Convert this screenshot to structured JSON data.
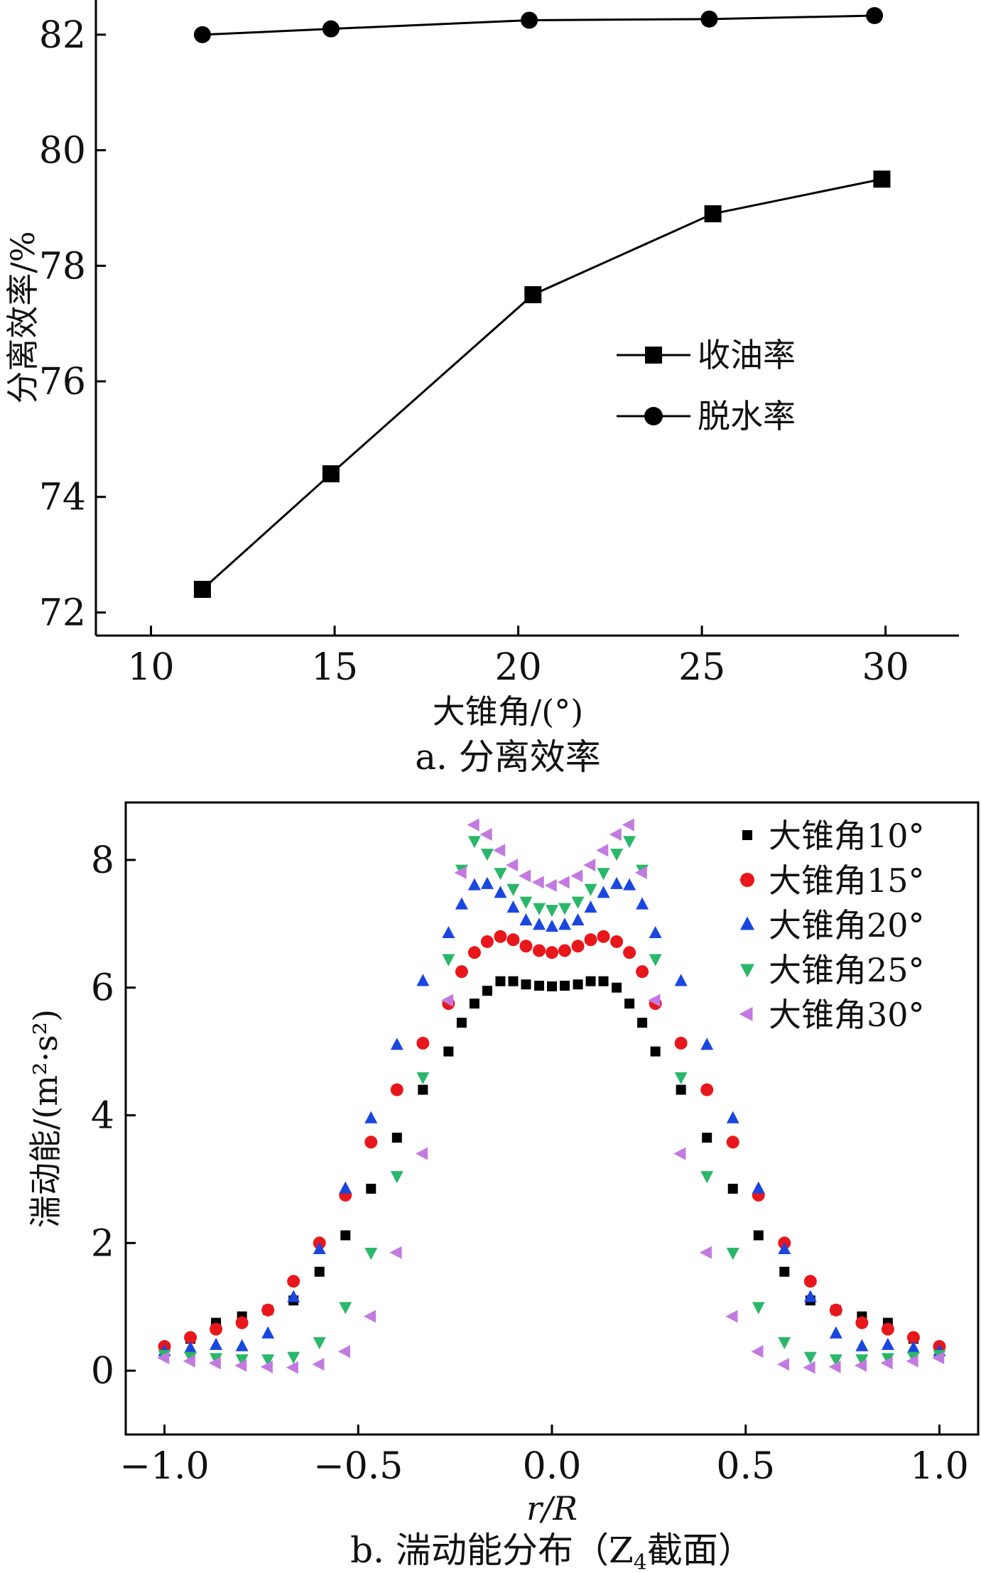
{
  "chart_data": [
    {
      "type": "line",
      "caption": "a. 分离效率",
      "xlabel": "大锥角/(°)",
      "ylabel": "分离效率/%",
      "xlim": [
        8.5,
        32
      ],
      "ylim": [
        71.6,
        82.6
      ],
      "xticks": [
        "10",
        "15",
        "20",
        "25",
        "30"
      ],
      "yticks": [
        "72",
        "74",
        "76",
        "78",
        "80",
        "82"
      ],
      "legend_position": "center-right",
      "series": [
        {
          "name": "收油率",
          "marker": "square",
          "x": [
            11.4,
            14.9,
            20.4,
            25.3,
            29.9
          ],
          "y": [
            72.4,
            74.4,
            77.5,
            78.9,
            79.5
          ]
        },
        {
          "name": "脱水率",
          "marker": "circle",
          "x": [
            11.4,
            14.9,
            20.3,
            25.2,
            29.7
          ],
          "y": [
            82.0,
            82.1,
            82.25,
            82.27,
            82.33
          ]
        }
      ]
    },
    {
      "type": "scatter",
      "caption_prefix": "b. 湍动能分布（Z",
      "caption_subscript": "4",
      "caption_suffix": "截面）",
      "xlabel": "r/R",
      "ylabel": "湍动能/(m²·s²)",
      "xlim": [
        -1.1,
        1.1
      ],
      "ylim": [
        -1.0,
        8.9
      ],
      "xticks": [
        "−1.0",
        "−0.5",
        "0.0",
        "0.5",
        "1.0"
      ],
      "yticks": [
        "0",
        "2",
        "4",
        "6",
        "8"
      ],
      "legend_position": "top-right",
      "series": [
        {
          "name": "大锥角10°",
          "color": "#000000",
          "marker": "square",
          "x": [
            -1.0,
            -0.933,
            -0.867,
            -0.8,
            -0.733,
            -0.667,
            -0.6,
            -0.533,
            -0.467,
            -0.4,
            -0.333,
            -0.267,
            -0.233,
            -0.2,
            -0.167,
            -0.133,
            -0.1,
            -0.067,
            -0.033,
            0.0,
            0.033,
            0.067,
            0.1,
            0.133,
            0.167,
            0.2,
            0.233,
            0.267,
            0.333,
            0.4,
            0.467,
            0.533,
            0.6,
            0.667,
            0.733,
            0.8,
            0.867,
            0.933,
            1.0
          ],
          "y": [
            0.35,
            0.5,
            0.75,
            0.85,
            0.95,
            1.1,
            1.55,
            2.12,
            2.85,
            3.65,
            4.4,
            5.0,
            5.45,
            5.75,
            5.95,
            6.1,
            6.1,
            6.05,
            6.03,
            6.02,
            6.03,
            6.05,
            6.1,
            6.1,
            6.0,
            5.75,
            5.45,
            5.0,
            4.4,
            3.65,
            2.85,
            2.12,
            1.55,
            1.1,
            0.95,
            0.85,
            0.75,
            0.5,
            0.35
          ]
        },
        {
          "name": "大锥角15°",
          "color": "#e8171b",
          "marker": "circle",
          "x": [
            -1.0,
            -0.933,
            -0.867,
            -0.8,
            -0.733,
            -0.667,
            -0.6,
            -0.533,
            -0.467,
            -0.4,
            -0.333,
            -0.267,
            -0.233,
            -0.2,
            -0.167,
            -0.133,
            -0.1,
            -0.067,
            -0.033,
            0.0,
            0.033,
            0.067,
            0.1,
            0.133,
            0.167,
            0.2,
            0.233,
            0.267,
            0.333,
            0.4,
            0.467,
            0.533,
            0.6,
            0.667,
            0.733,
            0.8,
            0.867,
            0.933,
            1.0
          ],
          "y": [
            0.38,
            0.52,
            0.65,
            0.75,
            0.95,
            1.4,
            2.0,
            2.75,
            3.58,
            4.4,
            5.13,
            5.75,
            6.25,
            6.55,
            6.72,
            6.8,
            6.75,
            6.65,
            6.58,
            6.55,
            6.58,
            6.65,
            6.75,
            6.8,
            6.72,
            6.55,
            6.25,
            5.75,
            5.13,
            4.4,
            3.58,
            2.75,
            2.0,
            1.4,
            0.95,
            0.75,
            0.65,
            0.52,
            0.38
          ]
        },
        {
          "name": "大锥角20°",
          "color": "#1a46e0",
          "marker": "triangle-up",
          "x": [
            -1.0,
            -0.933,
            -0.867,
            -0.8,
            -0.733,
            -0.667,
            -0.6,
            -0.533,
            -0.467,
            -0.4,
            -0.333,
            -0.267,
            -0.233,
            -0.2,
            -0.167,
            -0.133,
            -0.1,
            -0.067,
            -0.033,
            0.0,
            0.033,
            0.067,
            0.1,
            0.133,
            0.167,
            0.2,
            0.233,
            0.267,
            0.333,
            0.4,
            0.467,
            0.533,
            0.6,
            0.667,
            0.733,
            0.8,
            0.867,
            0.933,
            1.0
          ],
          "y": [
            0.3,
            0.35,
            0.4,
            0.38,
            0.58,
            1.15,
            1.9,
            2.85,
            3.95,
            5.1,
            6.1,
            6.85,
            7.3,
            7.6,
            7.62,
            7.48,
            7.25,
            7.05,
            6.98,
            6.95,
            6.98,
            7.05,
            7.25,
            7.48,
            7.62,
            7.6,
            7.3,
            6.85,
            6.1,
            5.1,
            3.95,
            2.85,
            1.9,
            1.15,
            0.58,
            0.38,
            0.4,
            0.35,
            0.3
          ]
        },
        {
          "name": "大锥角25°",
          "color": "#2ab76a",
          "marker": "triangle-down",
          "x": [
            -1.0,
            -0.933,
            -0.867,
            -0.8,
            -0.733,
            -0.667,
            -0.6,
            -0.533,
            -0.467,
            -0.4,
            -0.333,
            -0.267,
            -0.233,
            -0.2,
            -0.167,
            -0.133,
            -0.1,
            -0.067,
            -0.033,
            0.0,
            0.033,
            0.067,
            0.1,
            0.133,
            0.167,
            0.2,
            0.233,
            0.267,
            0.333,
            0.4,
            0.467,
            0.533,
            0.6,
            0.667,
            0.733,
            0.8,
            0.867,
            0.933,
            1.0
          ],
          "y": [
            0.25,
            0.22,
            0.2,
            0.18,
            0.18,
            0.22,
            0.45,
            1.0,
            1.85,
            3.05,
            4.6,
            6.45,
            7.85,
            8.3,
            8.1,
            7.8,
            7.55,
            7.35,
            7.25,
            7.22,
            7.25,
            7.35,
            7.55,
            7.8,
            8.1,
            8.3,
            7.85,
            6.45,
            4.6,
            3.05,
            1.85,
            1.0,
            0.45,
            0.22,
            0.18,
            0.18,
            0.2,
            0.22,
            0.25
          ]
        },
        {
          "name": "大锥角30°",
          "color": "#c37ae0",
          "marker": "triangle-left",
          "x": [
            -1.0,
            -0.933,
            -0.867,
            -0.8,
            -0.733,
            -0.667,
            -0.6,
            -0.533,
            -0.467,
            -0.4,
            -0.333,
            -0.267,
            -0.233,
            -0.2,
            -0.167,
            -0.133,
            -0.1,
            -0.067,
            -0.033,
            0.0,
            0.033,
            0.067,
            0.1,
            0.133,
            0.167,
            0.2,
            0.233,
            0.267,
            0.333,
            0.4,
            0.467,
            0.533,
            0.6,
            0.667,
            0.733,
            0.8,
            0.867,
            0.933,
            1.0
          ],
          "y": [
            0.2,
            0.15,
            0.12,
            0.08,
            0.06,
            0.05,
            0.1,
            0.3,
            0.85,
            1.85,
            3.4,
            5.8,
            7.8,
            8.55,
            8.4,
            8.15,
            7.92,
            7.75,
            7.65,
            7.6,
            7.65,
            7.75,
            7.92,
            8.15,
            8.4,
            8.55,
            7.8,
            5.8,
            3.4,
            1.85,
            0.85,
            0.3,
            0.1,
            0.05,
            0.06,
            0.08,
            0.12,
            0.15,
            0.2
          ]
        }
      ]
    }
  ]
}
